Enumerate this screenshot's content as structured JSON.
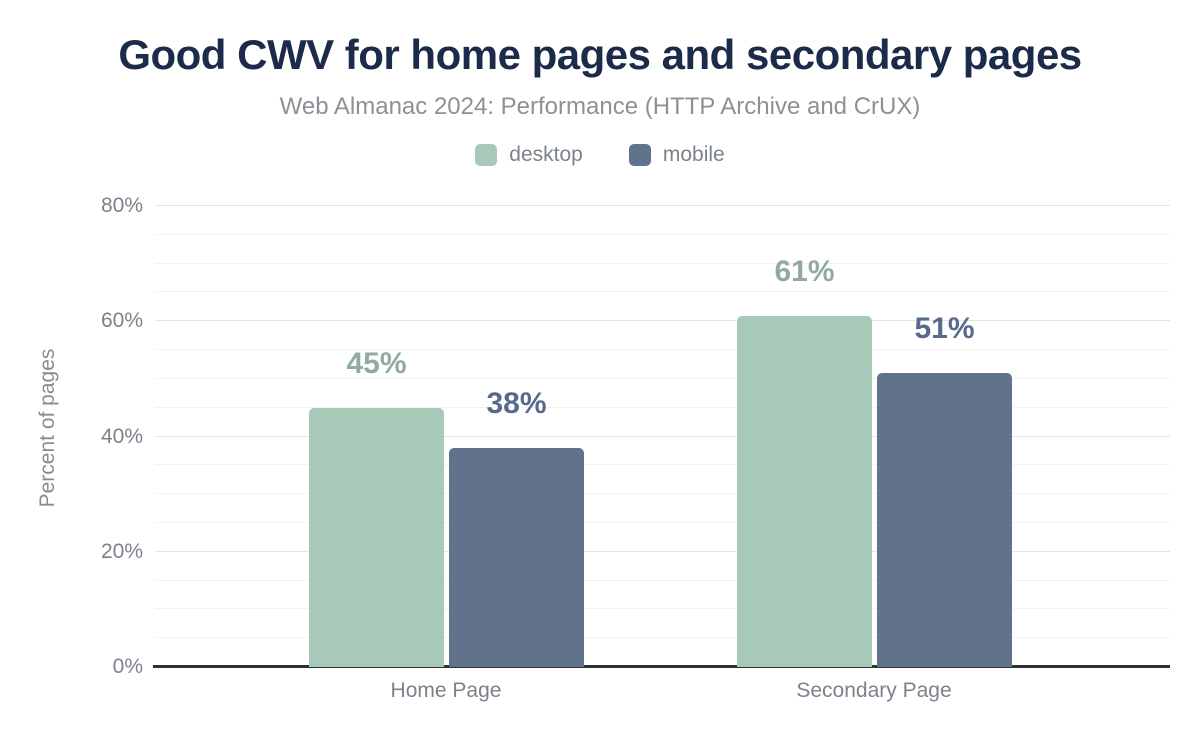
{
  "chart_data": {
    "type": "bar",
    "title": "Good CWV for home pages and secondary pages",
    "subtitle": "Web Almanac 2024: Performance (HTTP Archive and CrUX)",
    "categories": [
      "Home Page",
      "Secondary Page"
    ],
    "series": [
      {
        "name": "desktop",
        "color": "#a6c9b8",
        "label_color": "#90ab9e",
        "values": [
          45,
          61
        ]
      },
      {
        "name": "mobile",
        "color": "#61728c",
        "label_color": "#586a8c",
        "values": [
          38,
          51
        ]
      }
    ],
    "xlabel": "",
    "ylabel": "Percent of pages",
    "ylim": [
      0,
      80
    ],
    "yticks": [
      0,
      20,
      40,
      60,
      80
    ],
    "ytick_suffix": "%",
    "value_label_suffix": "%",
    "minor_grid_step": 5,
    "major_grid_step": 20,
    "grid": true,
    "legend_position": "top",
    "colors": {
      "title_text": "#1d2b4a",
      "subtitle_text": "#8b9196",
      "axis_text": "#7c828b",
      "baseline": "#2f3235"
    }
  }
}
